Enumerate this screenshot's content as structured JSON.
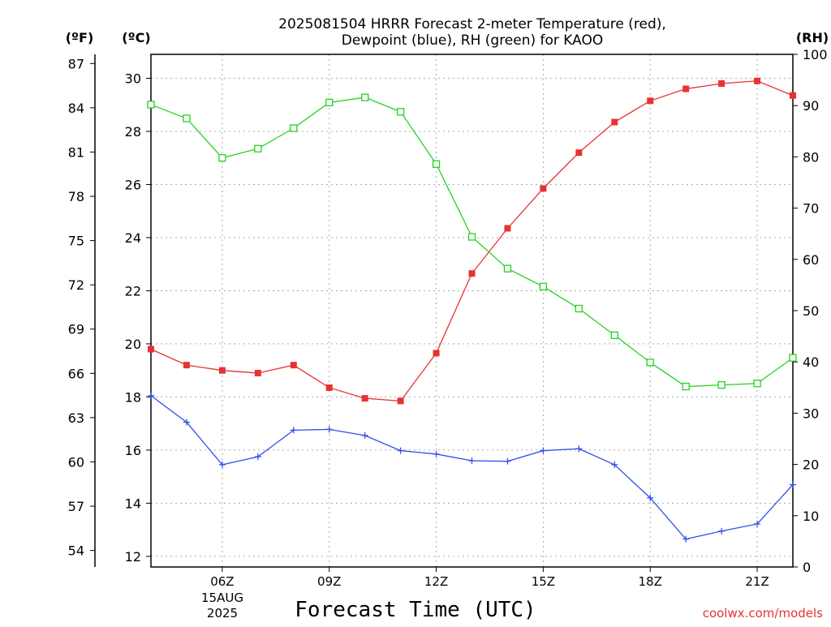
{
  "chart_data": {
    "type": "line",
    "title_line1": "2025081504 HRRR Forecast 2-meter Temperature (red),",
    "title_line2": "Dewpoint (blue), RH (green) for KAOO",
    "xlabel": "Forecast Time (UTC)",
    "unit_left_f": "(ºF)",
    "unit_left_c": "(ºC)",
    "unit_right": "(RH)",
    "date_day": "15AUG",
    "date_year": "2025",
    "credit": "coolwx.com/models",
    "x_hours": [
      4,
      5,
      6,
      7,
      8,
      9,
      10,
      11,
      12,
      13,
      14,
      15,
      16,
      17,
      18,
      19,
      20,
      21,
      22
    ],
    "xlim": [
      4,
      22
    ],
    "x_ticks": [
      {
        "hour": 6,
        "label": "06Z"
      },
      {
        "hour": 9,
        "label": "09Z"
      },
      {
        "hour": 12,
        "label": "12Z"
      },
      {
        "hour": 15,
        "label": "15Z"
      },
      {
        "hour": 18,
        "label": "18Z"
      },
      {
        "hour": 21,
        "label": "21Z"
      }
    ],
    "y_celsius_lim": [
      11.6,
      30.9
    ],
    "y_celsius_ticks": [
      "12",
      "14",
      "16",
      "18",
      "20",
      "22",
      "24",
      "26",
      "28",
      "30"
    ],
    "y_fahrenheit_ticks": [
      "54",
      "57",
      "60",
      "63",
      "66",
      "69",
      "72",
      "75",
      "78",
      "81",
      "84",
      "87"
    ],
    "y_rh_lim": [
      0,
      100
    ],
    "y_rh_ticks": [
      "0",
      "10",
      "20",
      "30",
      "40",
      "50",
      "60",
      "70",
      "80",
      "90",
      "100"
    ],
    "grid": true,
    "series": [
      {
        "name": "Temperature",
        "axis": "celsius",
        "color": "#e83232",
        "marker": "filled-square",
        "values": [
          19.8,
          19.2,
          19.0,
          18.9,
          19.2,
          18.35,
          17.95,
          17.85,
          19.65,
          22.65,
          24.35,
          25.85,
          27.2,
          28.35,
          29.15,
          29.6,
          29.8,
          29.9,
          29.35
        ]
      },
      {
        "name": "Dewpoint",
        "axis": "celsius",
        "color": "#2f4fe8",
        "marker": "plus",
        "values": [
          18.05,
          17.05,
          15.45,
          15.75,
          16.75,
          16.78,
          16.55,
          15.98,
          15.85,
          15.6,
          15.58,
          15.98,
          16.05,
          15.45,
          14.2,
          12.65,
          12.95,
          13.22,
          14.7
        ]
      },
      {
        "name": "RH",
        "axis": "rh",
        "color": "#22d322",
        "marker": "open-square",
        "values": [
          90.2,
          87.5,
          79.8,
          81.6,
          85.6,
          90.6,
          91.6,
          88.8,
          78.6,
          64.4,
          58.2,
          54.7,
          50.4,
          45.2,
          39.9,
          35.2,
          35.5,
          35.8,
          40.8
        ]
      }
    ]
  }
}
